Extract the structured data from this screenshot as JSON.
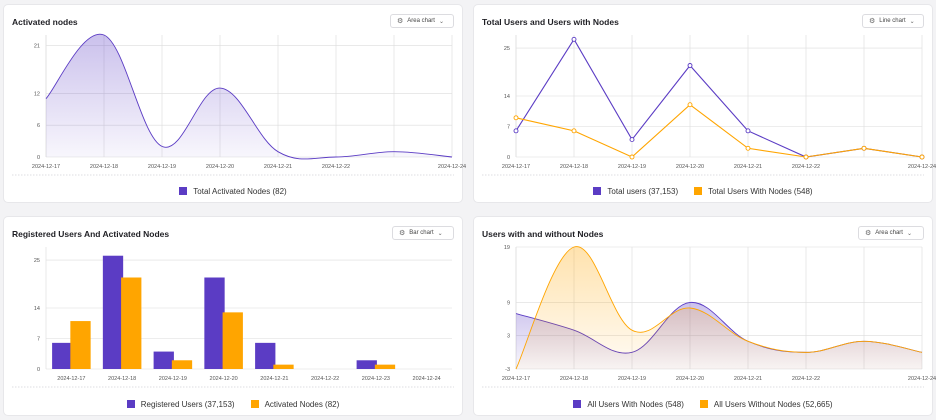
{
  "colors": {
    "purple": "#5b3cc4",
    "orange": "#ffa500",
    "grid": "#dcdcdc"
  },
  "panels": [
    {
      "title": "Activated nodes",
      "selector": {
        "icon": "gear-icon",
        "label": "Area chart",
        "chevron": "⌄"
      },
      "legend": [
        {
          "label": "Total Activated Nodes (82)",
          "color": "#5b3cc4"
        }
      ]
    },
    {
      "title": "Total Users and Users with Nodes",
      "selector": {
        "icon": "gear-icon",
        "label": "Line chart",
        "chevron": "⌄"
      },
      "legend": [
        {
          "label": "Total users (37,153)",
          "color": "#5b3cc4"
        },
        {
          "label": "Total Users With Nodes (548)",
          "color": "#ffa500"
        }
      ]
    },
    {
      "title": "Registered Users And Activated Nodes",
      "selector": {
        "icon": "gear-icon",
        "label": "Bar chart",
        "chevron": "⌄"
      },
      "legend": [
        {
          "label": "Registered Users (37,153)",
          "color": "#5b3cc4"
        },
        {
          "label": "Activated Nodes (82)",
          "color": "#ffa500"
        }
      ]
    },
    {
      "title": "Users with and without Nodes",
      "selector": {
        "icon": "gear-icon",
        "label": "Area chart",
        "chevron": "⌄"
      },
      "legend": [
        {
          "label": "All Users With Nodes (548)",
          "color": "#5b3cc4"
        },
        {
          "label": "All Users Without Nodes (52,665)",
          "color": "#ffa500"
        }
      ]
    }
  ],
  "chart_data": [
    {
      "type": "area",
      "title": "Activated nodes",
      "x": [
        "2024-12-17",
        "2024-12-18",
        "2024-12-19",
        "2024-12-20",
        "2024-12-21",
        "2024-12-22",
        "2024-12-23",
        "2024-12-24"
      ],
      "x_ticks": [
        "2024-12-17",
        "2024-12-18",
        "2024-12-19",
        "2024-12-20",
        "2024-12-21",
        "2024-12-22",
        "2024-12-24"
      ],
      "y_ticks": [
        "0",
        "6",
        "12",
        "21"
      ],
      "ylim": [
        0,
        23
      ],
      "series": [
        {
          "name": "Total Activated Nodes (82)",
          "values": [
            11,
            23,
            2,
            13,
            1,
            0,
            1,
            0
          ]
        }
      ]
    },
    {
      "type": "line",
      "title": "Total Users and Users with Nodes",
      "x": [
        "2024-12-17",
        "2024-12-18",
        "2024-12-19",
        "2024-12-20",
        "2024-12-21",
        "2024-12-22",
        "2024-12-23",
        "2024-12-24"
      ],
      "x_ticks": [
        "2024-12-17",
        "2024-12-18",
        "2024-12-19",
        "2024-12-20",
        "2024-12-21",
        "2024-12-22",
        "2024-12-24"
      ],
      "y_ticks": [
        "0",
        "7",
        "14",
        "25"
      ],
      "ylim": [
        0,
        28
      ],
      "series": [
        {
          "name": "Total users (37,153)",
          "values": [
            6,
            27,
            4,
            21,
            6,
            0,
            2,
            0
          ]
        },
        {
          "name": "Total Users With Nodes (548)",
          "values": [
            9,
            6,
            0,
            12,
            2,
            0,
            2,
            0
          ]
        }
      ]
    },
    {
      "type": "bar",
      "title": "Registered Users And Activated Nodes",
      "categories": [
        "2024-12-17",
        "2024-12-18",
        "2024-12-19",
        "2024-12-20",
        "2024-12-21",
        "2024-12-22",
        "2024-12-23",
        "2024-12-24"
      ],
      "y_ticks": [
        "0",
        "7",
        "14",
        "25"
      ],
      "ylim": [
        0,
        28
      ],
      "series": [
        {
          "name": "Registered Users (37,153)",
          "values": [
            6,
            26,
            4,
            21,
            6,
            0,
            2,
            0
          ]
        },
        {
          "name": "Activated Nodes (82)",
          "values": [
            11,
            21,
            2,
            13,
            1,
            0,
            1,
            0
          ]
        }
      ]
    },
    {
      "type": "area",
      "title": "Users with and without Nodes",
      "x": [
        "2024-12-17",
        "2024-12-18",
        "2024-12-19",
        "2024-12-20",
        "2024-12-21",
        "2024-12-22",
        "2024-12-23",
        "2024-12-24"
      ],
      "x_ticks": [
        "2024-12-17",
        "2024-12-18",
        "2024-12-19",
        "2024-12-20",
        "2024-12-21",
        "2024-12-22",
        "2024-12-24"
      ],
      "y_ticks": [
        "-3",
        "3",
        "9",
        "19"
      ],
      "ylim": [
        -3,
        19
      ],
      "series": [
        {
          "name": "All Users With Nodes (548)",
          "values": [
            7,
            4,
            0,
            9,
            2,
            0,
            2,
            0
          ]
        },
        {
          "name": "All Users Without Nodes (52,665)",
          "values": [
            -3,
            19,
            4,
            8,
            2,
            0,
            2,
            0
          ]
        }
      ]
    }
  ]
}
